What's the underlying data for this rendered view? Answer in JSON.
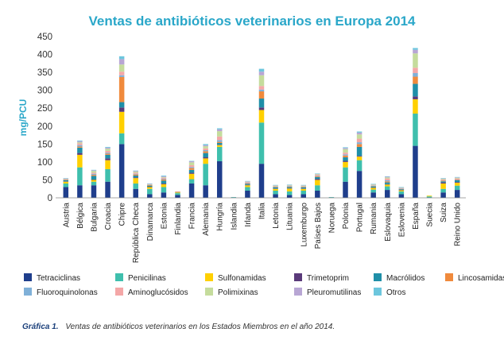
{
  "chart_data": {
    "type": "bar",
    "stacked": true,
    "title": "Ventas de antibióticos veterinarios en Europa 2014",
    "xlabel": "",
    "ylabel": "mg/PCU",
    "ylim": [
      0,
      450
    ],
    "yticks": [
      0,
      50,
      100,
      150,
      200,
      250,
      300,
      350,
      400,
      450
    ],
    "grid": false,
    "legend_position": "bottom",
    "categories": [
      "Austria",
      "Bélgica",
      "Bulgaria",
      "Croacia",
      "Chipre",
      "República Checa",
      "Dinamarca",
      "Estonia",
      "Finlandia",
      "Francia",
      "Alemania",
      "Hungría",
      "Islandia",
      "Irlanda",
      "Italia",
      "Letonia",
      "Lituania",
      "Luxemburgo",
      "Países Bajos",
      "Noruega",
      "Polonia",
      "Portugal",
      "Rumania",
      "Eslovaquia",
      "Eslovenia",
      "España",
      "Suecia",
      "Suiza",
      "Reino Unido"
    ],
    "series": [
      {
        "name": "Tetraciclinas",
        "color": "#1f3e8c",
        "values": [
          30,
          35,
          35,
          45,
          150,
          25,
          10,
          15,
          8,
          40,
          35,
          102,
          1,
          20,
          95,
          10,
          8,
          10,
          20,
          1,
          45,
          75,
          15,
          22,
          10,
          145,
          1,
          15,
          22
        ]
      },
      {
        "name": "Penicilinas",
        "color": "#3fbfad",
        "values": [
          10,
          50,
          10,
          35,
          30,
          15,
          15,
          15,
          5,
          12,
          60,
          40,
          1,
          10,
          115,
          10,
          10,
          10,
          15,
          1,
          40,
          30,
          8,
          10,
          8,
          90,
          3,
          10,
          12
        ]
      },
      {
        "name": "Sulfonamidas",
        "color": "#ffd000",
        "values": [
          5,
          35,
          5,
          25,
          60,
          15,
          5,
          8,
          2,
          15,
          15,
          5,
          0,
          5,
          35,
          5,
          8,
          5,
          15,
          0,
          15,
          10,
          5,
          5,
          3,
          40,
          2,
          15,
          8
        ]
      },
      {
        "name": "Trimetoprim",
        "color": "#5a3a7a",
        "values": [
          1,
          5,
          1,
          5,
          12,
          2,
          1,
          2,
          0,
          3,
          3,
          1,
          0,
          1,
          7,
          1,
          1,
          1,
          3,
          0,
          3,
          2,
          1,
          1,
          1,
          8,
          0,
          3,
          2
        ]
      },
      {
        "name": "Macrólidos",
        "color": "#1f8fa8",
        "values": [
          3,
          15,
          10,
          10,
          15,
          5,
          3,
          8,
          1,
          8,
          12,
          5,
          0,
          3,
          25,
          3,
          3,
          3,
          5,
          0,
          10,
          25,
          3,
          5,
          2,
          35,
          0,
          3,
          5
        ]
      },
      {
        "name": "Lincosamidas",
        "color": "#f08a3c",
        "values": [
          1,
          3,
          3,
          3,
          70,
          3,
          2,
          3,
          1,
          5,
          5,
          3,
          0,
          1,
          20,
          1,
          1,
          1,
          2,
          0,
          5,
          8,
          1,
          3,
          1,
          20,
          0,
          2,
          1
        ]
      },
      {
        "name": "Fluoroquinolonas",
        "color": "#7fb0d8",
        "values": [
          1,
          4,
          3,
          3,
          5,
          2,
          0,
          2,
          0,
          3,
          3,
          5,
          0,
          1,
          5,
          1,
          1,
          1,
          1,
          0,
          3,
          5,
          1,
          3,
          1,
          10,
          0,
          1,
          1
        ]
      },
      {
        "name": "Aminoglucósidos",
        "color": "#f4a7a7",
        "values": [
          1,
          5,
          3,
          5,
          10,
          3,
          1,
          3,
          1,
          5,
          5,
          10,
          0,
          3,
          10,
          1,
          1,
          1,
          3,
          0,
          5,
          10,
          1,
          5,
          1,
          15,
          0,
          2,
          3
        ]
      },
      {
        "name": "Polimixinas",
        "color": "#c5dc9c",
        "values": [
          1,
          3,
          5,
          6,
          20,
          3,
          1,
          2,
          0,
          8,
          6,
          15,
          0,
          1,
          30,
          2,
          2,
          2,
          2,
          0,
          10,
          12,
          2,
          3,
          1,
          40,
          0,
          2,
          2
        ]
      },
      {
        "name": "Pleuromutilinas",
        "color": "#b8a6d4",
        "values": [
          1,
          3,
          2,
          3,
          15,
          2,
          1,
          2,
          0,
          3,
          3,
          5,
          0,
          1,
          10,
          1,
          1,
          1,
          1,
          0,
          3,
          5,
          1,
          2,
          1,
          10,
          0,
          1,
          1
        ]
      },
      {
        "name": "Otros",
        "color": "#6cc6dd",
        "values": [
          1,
          2,
          1,
          2,
          8,
          1,
          1,
          2,
          0,
          1,
          3,
          3,
          0,
          1,
          8,
          1,
          1,
          1,
          1,
          0,
          2,
          3,
          1,
          1,
          1,
          5,
          0,
          1,
          1
        ]
      }
    ]
  },
  "caption": {
    "label": "Gráfica 1.",
    "text": "Ventas de antibióticos veterinarios en los Estados Miembros en el año 2014."
  }
}
